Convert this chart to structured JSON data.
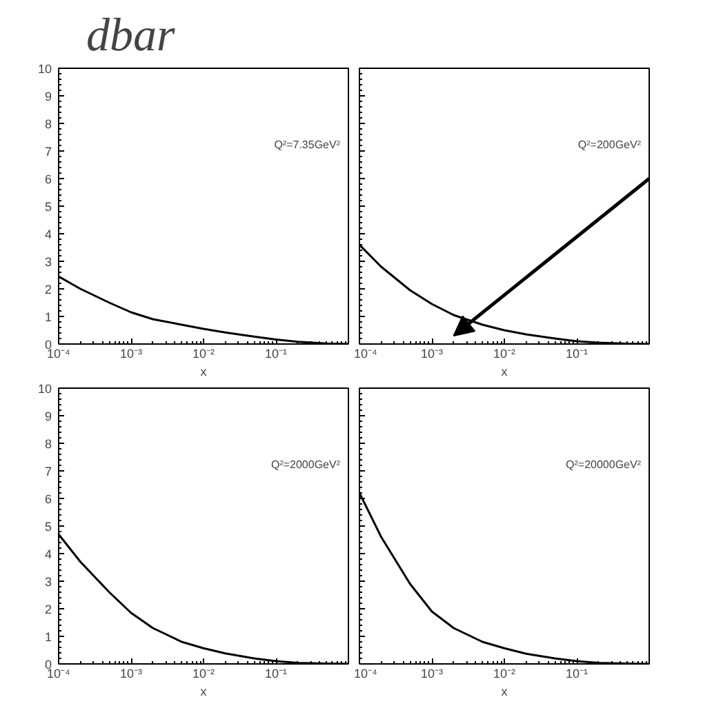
{
  "chart_data": [
    {
      "type": "line",
      "title": "dbar",
      "xlabel": "x",
      "annotations": [
        "Q²=7.35GeV²"
      ],
      "x": [
        0.0001,
        0.0002,
        0.0005,
        0.001,
        0.002,
        0.005,
        0.01,
        0.02,
        0.05,
        0.1,
        0.2,
        0.5,
        1
      ],
      "xlim": [
        0.0001,
        1
      ],
      "ylim": [
        0,
        10
      ],
      "xticks": [
        {
          "value": 0.0001,
          "label": "10⁻⁴"
        },
        {
          "value": 0.001,
          "label": "10⁻³"
        },
        {
          "value": 0.01,
          "label": "10⁻²"
        },
        {
          "value": 0.1,
          "label": "10⁻¹"
        }
      ],
      "yticks": [
        0,
        1,
        2,
        3,
        4,
        5,
        6,
        7,
        8,
        9,
        10
      ],
      "grid": false,
      "log": "x",
      "series": [
        {
          "color": "#000000",
          "values": [
            2.45,
            2.0,
            1.5,
            1.15,
            0.9,
            0.7,
            0.55,
            0.42,
            0.27,
            0.16,
            0.08,
            0.02,
            0
          ]
        }
      ]
    },
    {
      "type": "line",
      "xlabel": "x",
      "annotations": [
        "Q²=200GeV²"
      ],
      "x": [
        0.0001,
        0.0002,
        0.0005,
        0.001,
        0.002,
        0.005,
        0.01,
        0.02,
        0.05,
        0.1,
        0.2,
        0.5,
        1
      ],
      "xlim": [
        0.0001,
        1
      ],
      "ylim": [
        0,
        10
      ],
      "xticks": [
        {
          "value": 0.0001,
          "label": "10⁻⁴"
        },
        {
          "value": 0.001,
          "label": "10⁻³"
        },
        {
          "value": 0.01,
          "label": "10⁻²"
        },
        {
          "value": 0.1,
          "label": "10⁻¹"
        }
      ],
      "yticks": [
        0,
        1,
        2,
        3,
        4,
        5,
        6,
        7,
        8,
        9,
        10
      ],
      "grid": false,
      "tick_labels": "x",
      "log": "x",
      "series": [
        {
          "color": "#000000",
          "values": [
            3.6,
            2.8,
            1.95,
            1.45,
            1.05,
            0.7,
            0.5,
            0.35,
            0.2,
            0.1,
            0.05,
            0.01,
            0
          ]
        }
      ]
    },
    {
      "type": "line",
      "xlabel": "x",
      "annotations": [
        "Q²=2000GeV²"
      ],
      "x": [
        0.0001,
        0.0002,
        0.0005,
        0.001,
        0.002,
        0.005,
        0.01,
        0.02,
        0.05,
        0.1,
        0.2,
        0.5,
        1
      ],
      "xlim": [
        0.0001,
        1
      ],
      "ylim": [
        0,
        10
      ],
      "xticks": [
        {
          "value": 0.0001,
          "label": "10⁻⁴"
        },
        {
          "value": 0.001,
          "label": "10⁻³"
        },
        {
          "value": 0.01,
          "label": "10⁻²"
        },
        {
          "value": 0.1,
          "label": "10⁻¹"
        }
      ],
      "yticks": [
        0,
        1,
        2,
        3,
        4,
        5,
        6,
        7,
        8,
        9,
        10
      ],
      "grid": false,
      "log": "x",
      "series": [
        {
          "color": "#000000",
          "values": [
            4.7,
            3.7,
            2.6,
            1.85,
            1.3,
            0.8,
            0.57,
            0.38,
            0.2,
            0.1,
            0.04,
            0.01,
            0
          ]
        }
      ]
    },
    {
      "type": "line",
      "xlabel": "x",
      "annotations": [
        "Q²=20000GeV²"
      ],
      "x": [
        0.0001,
        0.0002,
        0.0005,
        0.001,
        0.002,
        0.005,
        0.01,
        0.02,
        0.05,
        0.1,
        0.2,
        0.5,
        1
      ],
      "xlim": [
        0.0001,
        1
      ],
      "ylim": [
        0,
        10
      ],
      "xticks": [
        {
          "value": 0.0001,
          "label": "10⁻⁴"
        },
        {
          "value": 0.001,
          "label": "10⁻³"
        },
        {
          "value": 0.01,
          "label": "10⁻²"
        },
        {
          "value": 0.1,
          "label": "10⁻¹"
        }
      ],
      "yticks": [
        0,
        1,
        2,
        3,
        4,
        5,
        6,
        7,
        8,
        9,
        10
      ],
      "grid": false,
      "tick_labels": "x",
      "log": "x",
      "series": [
        {
          "color": "#000000",
          "values": [
            6.2,
            4.6,
            2.9,
            1.9,
            1.3,
            0.8,
            0.57,
            0.37,
            0.2,
            0.1,
            0.04,
            0.01,
            0
          ]
        }
      ]
    }
  ]
}
